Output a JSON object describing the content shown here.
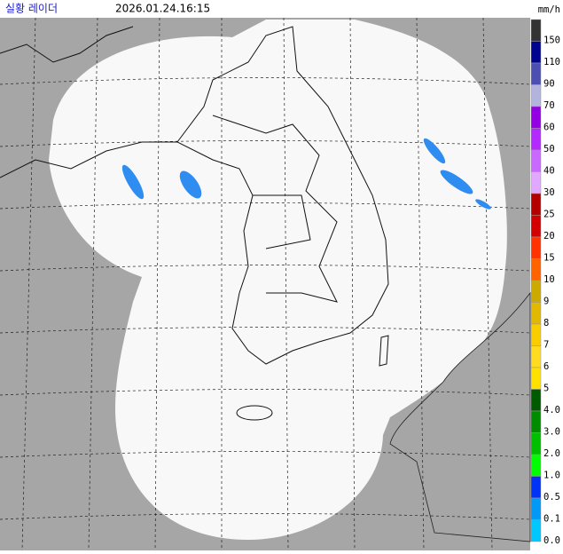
{
  "header": {
    "title": "실황 레이더",
    "timestamp": "2026.01.24.16:15",
    "unit": "mm/h"
  },
  "legend": {
    "items": [
      {
        "label": "150",
        "color": "#333333"
      },
      {
        "label": "110",
        "color": "#000390"
      },
      {
        "label": "90",
        "color": "#4c4eb1"
      },
      {
        "label": "70",
        "color": "#b3b4de"
      },
      {
        "label": "60",
        "color": "#9300e4"
      },
      {
        "label": "50",
        "color": "#b329ff"
      },
      {
        "label": "40",
        "color": "#c969ff"
      },
      {
        "label": "30",
        "color": "#e0a9ff"
      },
      {
        "label": "25",
        "color": "#b40000"
      },
      {
        "label": "20",
        "color": "#d20000"
      },
      {
        "label": "15",
        "color": "#ff3200"
      },
      {
        "label": "10",
        "color": "#ff6400"
      },
      {
        "label": "9",
        "color": "#ccaa00"
      },
      {
        "label": "8",
        "color": "#e0b900"
      },
      {
        "label": "7",
        "color": "#f9cd00"
      },
      {
        "label": "6",
        "color": "#ffdc1f"
      },
      {
        "label": "5",
        "color": "#ffe100"
      },
      {
        "label": "4.0",
        "color": "#005a00"
      },
      {
        "label": "3.0",
        "color": "#008c00"
      },
      {
        "label": "2.0",
        "color": "#00be00"
      },
      {
        "label": "1.0",
        "color": "#00ff00"
      },
      {
        "label": "0.5",
        "color": "#0033f5"
      },
      {
        "label": "0.1",
        "color": "#0099f5"
      },
      {
        "label": "0.0",
        "color": "#00c8ff"
      }
    ]
  }
}
